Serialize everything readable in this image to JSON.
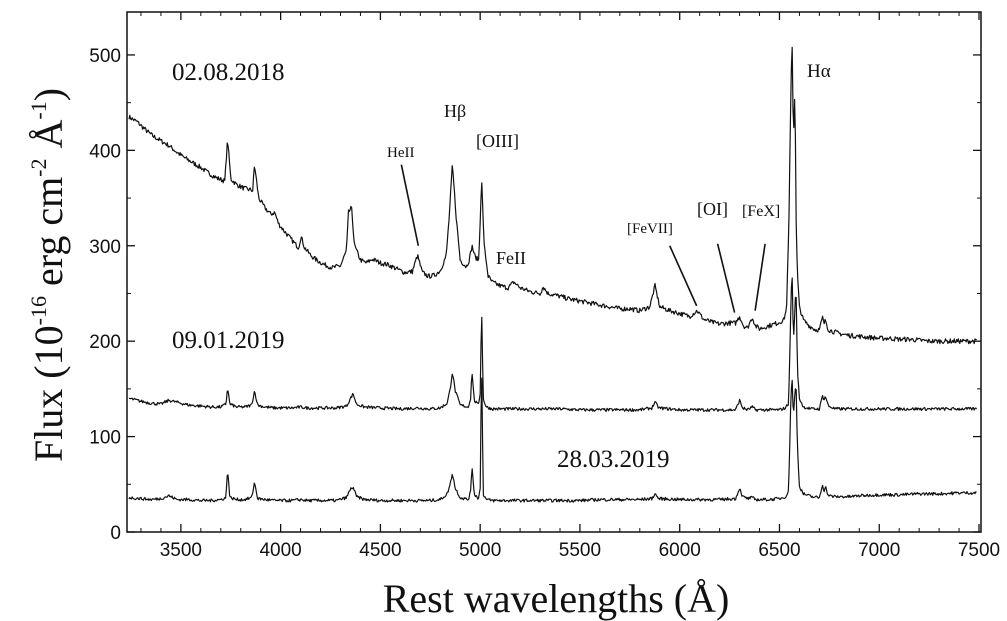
{
  "chart_data": {
    "type": "line",
    "title": "",
    "xlabel": "Rest wavelengths (Å)",
    "ylabel_parts": {
      "prefix": "Flux  (10",
      "exp1": "-16",
      "mid1": " erg cm",
      "exp2": "-2",
      "mid2": " Å",
      "exp3": "-1",
      "suffix": ")"
    },
    "xlim": [
      3230,
      7510
    ],
    "ylim": [
      0,
      545
    ],
    "xticks": [
      3500,
      4000,
      4500,
      5000,
      5500,
      6000,
      6500,
      7000,
      7500
    ],
    "yticks": [
      0,
      100,
      200,
      300,
      400,
      500
    ],
    "grid": false,
    "series": [
      {
        "label": "02.08.2018",
        "line_color": "#111111",
        "x": [
          3240,
          3280,
          3320,
          3360,
          3400,
          3440,
          3480,
          3520,
          3560,
          3600,
          3640,
          3680,
          3720,
          3734,
          3750,
          3780,
          3820,
          3860,
          3869,
          3890,
          3920,
          3950,
          3970,
          3990,
          4020,
          4060,
          4090,
          4102,
          4120,
          4150,
          4180,
          4220,
          4260,
          4300,
          4330,
          4340,
          4355,
          4370,
          4400,
          4430,
          4460,
          4500,
          4540,
          4580,
          4620,
          4660,
          4686,
          4710,
          4740,
          4770,
          4800,
          4830,
          4845,
          4861,
          4880,
          4900,
          4930,
          4945,
          4959,
          4975,
          4993,
          5007,
          5020,
          5040,
          5060,
          5100,
          5140,
          5169,
          5200,
          5250,
          5300,
          5316,
          5340,
          5400,
          5450,
          5500,
          5550,
          5600,
          5650,
          5700,
          5750,
          5800,
          5850,
          5876,
          5900,
          5950,
          6000,
          6050,
          6087,
          6120,
          6160,
          6200,
          6240,
          6280,
          6300,
          6320,
          6340,
          6364,
          6380,
          6400,
          6430,
          6460,
          6490,
          6520,
          6535,
          6548,
          6555,
          6563,
          6570,
          6578,
          6583,
          6590,
          6600,
          6620,
          6650,
          6680,
          6700,
          6716,
          6722,
          6731,
          6745,
          6770,
          6800,
          6850,
          6900,
          6950,
          7000,
          7050,
          7100,
          7150,
          7200,
          7250,
          7300,
          7350,
          7400,
          7450,
          7490
        ],
        "y": [
          435,
          430,
          422,
          415,
          410,
          405,
          398,
          392,
          387,
          382,
          376,
          371,
          368,
          412,
          370,
          364,
          360,
          358,
          385,
          350,
          340,
          333,
          335,
          323,
          315,
          305,
          298,
          310,
          298,
          290,
          285,
          280,
          277,
          279,
          295,
          335,
          340,
          300,
          285,
          282,
          286,
          282,
          280,
          276,
          272,
          273,
          290,
          272,
          268,
          269,
          274,
          290,
          330,
          385,
          330,
          285,
          278,
          285,
          300,
          288,
          285,
          370,
          300,
          268,
          262,
          258,
          256,
          262,
          256,
          252,
          250,
          257,
          250,
          247,
          244,
          242,
          240,
          238,
          236,
          234,
          234,
          232,
          236,
          258,
          236,
          232,
          229,
          226,
          232,
          223,
          220,
          218,
          219,
          219,
          226,
          216,
          214,
          225,
          216,
          213,
          215,
          217,
          219,
          222,
          233,
          330,
          430,
          525,
          410,
          470,
          330,
          270,
          236,
          222,
          216,
          212,
          212,
          225,
          218,
          222,
          212,
          210,
          208,
          206,
          205,
          204,
          203,
          203,
          202,
          202,
          201,
          200,
          200,
          200,
          200,
          200,
          200
        ]
      },
      {
        "label": "09.01.2019",
        "line_color": "#111111",
        "x": [
          3240,
          3300,
          3350,
          3400,
          3440,
          3480,
          3540,
          3600,
          3650,
          3700,
          3726,
          3734,
          3745,
          3780,
          3820,
          3855,
          3869,
          3885,
          3920,
          3970,
          4020,
          4060,
          4102,
          4130,
          4200,
          4280,
          4330,
          4350,
          4363,
          4380,
          4420,
          4500,
          4600,
          4686,
          4750,
          4800,
          4835,
          4850,
          4861,
          4875,
          4900,
          4940,
          4952,
          4959,
          4970,
          4990,
          5000,
          5007,
          5015,
          5030,
          5060,
          5100,
          5200,
          5300,
          5400,
          5500,
          5600,
          5700,
          5800,
          5860,
          5876,
          5895,
          6000,
          6100,
          6200,
          6280,
          6300,
          6315,
          6340,
          6364,
          6380,
          6450,
          6500,
          6530,
          6545,
          6550,
          6556,
          6563,
          6570,
          6576,
          6583,
          6590,
          6600,
          6620,
          6660,
          6700,
          6716,
          6722,
          6731,
          6745,
          6780,
          6850,
          6900,
          7000,
          7100,
          7200,
          7300,
          7400,
          7490
        ],
        "y": [
          140,
          137,
          135,
          134,
          138,
          136,
          133,
          132,
          131,
          131,
          134,
          152,
          134,
          131,
          131,
          133,
          148,
          133,
          131,
          130,
          130,
          130,
          131,
          130,
          130,
          130,
          132,
          140,
          145,
          134,
          131,
          130,
          129,
          130,
          129,
          130,
          135,
          150,
          168,
          148,
          133,
          131,
          140,
          169,
          138,
          133,
          145,
          238,
          140,
          131,
          129,
          129,
          129,
          129,
          129,
          128,
          128,
          128,
          128,
          130,
          136,
          130,
          128,
          128,
          128,
          128,
          138,
          130,
          128,
          131,
          128,
          128,
          128,
          130,
          135,
          165,
          225,
          278,
          200,
          225,
          260,
          170,
          140,
          131,
          129,
          129,
          143,
          139,
          142,
          132,
          129,
          129,
          129,
          129,
          129,
          129,
          129,
          129,
          129
        ]
      },
      {
        "label": "28.03.2019",
        "line_color": "#111111",
        "x": [
          3240,
          3300,
          3350,
          3400,
          3440,
          3480,
          3540,
          3600,
          3650,
          3700,
          3726,
          3734,
          3745,
          3780,
          3820,
          3855,
          3869,
          3885,
          3920,
          3970,
          4020,
          4060,
          4102,
          4130,
          4200,
          4280,
          4330,
          4350,
          4363,
          4380,
          4420,
          4500,
          4600,
          4686,
          4750,
          4800,
          4835,
          4850,
          4861,
          4875,
          4900,
          4940,
          4952,
          4959,
          4970,
          4990,
          5000,
          5007,
          5015,
          5030,
          5060,
          5100,
          5200,
          5300,
          5400,
          5500,
          5600,
          5700,
          5800,
          5860,
          5876,
          5895,
          6000,
          6100,
          6200,
          6280,
          6300,
          6315,
          6340,
          6364,
          6380,
          6450,
          6500,
          6530,
          6545,
          6550,
          6556,
          6563,
          6570,
          6576,
          6583,
          6590,
          6600,
          6620,
          6660,
          6700,
          6716,
          6722,
          6731,
          6745,
          6780,
          6850,
          6900,
          7000,
          7100,
          7200,
          7300,
          7400,
          7490
        ],
        "y": [
          36,
          35,
          34,
          35,
          38,
          34,
          34,
          33,
          33,
          34,
          36,
          67,
          36,
          34,
          34,
          36,
          52,
          35,
          34,
          33,
          33,
          33,
          34,
          33,
          33,
          33,
          36,
          45,
          47,
          37,
          34,
          33,
          33,
          33,
          33,
          34,
          40,
          50,
          62,
          46,
          36,
          34,
          42,
          70,
          40,
          35,
          45,
          180,
          40,
          34,
          33,
          33,
          33,
          33,
          33,
          33,
          34,
          34,
          34,
          35,
          40,
          35,
          34,
          34,
          34,
          35,
          46,
          37,
          35,
          36,
          34,
          34,
          35,
          37,
          42,
          75,
          130,
          165,
          120,
          140,
          158,
          90,
          48,
          40,
          37,
          36,
          50,
          43,
          47,
          38,
          37,
          37,
          38,
          39,
          39,
          40,
          40,
          41,
          41
        ]
      }
    ],
    "annotations": [
      {
        "text": "HeII"
      },
      {
        "text": "Hβ"
      },
      {
        "text": "[OIII]"
      },
      {
        "text": "FeII"
      },
      {
        "text": "[FeVII]"
      },
      {
        "text": "[OI]"
      },
      {
        "text": "[FeX]"
      },
      {
        "text": "Hα"
      }
    ]
  }
}
